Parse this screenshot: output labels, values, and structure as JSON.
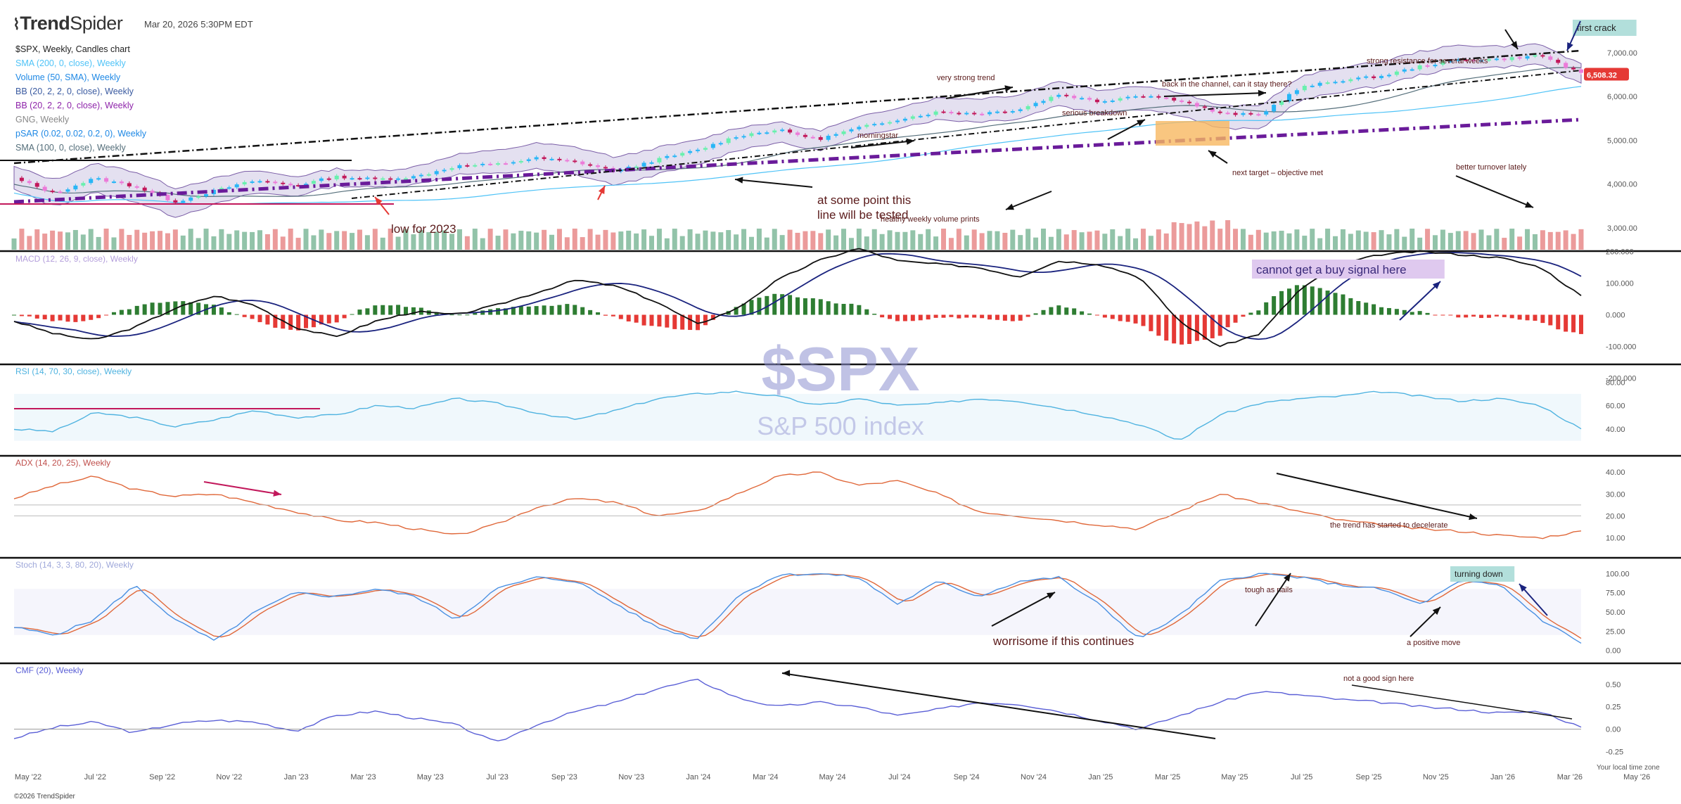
{
  "app": {
    "brand_bold": "Trend",
    "brand_light": "Spider",
    "timestamp": "Mar 20, 2026 5:30PM EDT",
    "footer": "©2026 TrendSpider",
    "timezone_note": "Your local time zone"
  },
  "header": {
    "symbol_line": "$SPX, Weekly, Candles chart",
    "indicators": [
      {
        "label": "SMA (200, 0, close), Weekly",
        "color": "#4fc3f7"
      },
      {
        "label": "Volume (50, SMA), Weekly",
        "color": "#1e88e5"
      },
      {
        "label": "BB (20, 2, 2, 0, close), Weekly",
        "color": "#3a5aa0"
      },
      {
        "label": "BB (20, 2, 2, 0, close), Weekly",
        "color": "#8e24aa"
      },
      {
        "label": "GNG, Weekly",
        "color": "#888888"
      },
      {
        "label": "pSAR (0.02, 0.02, 0.2, 0), Weekly",
        "color": "#1e88e5"
      },
      {
        "label": "SMA (100, 0, close), Weekly",
        "color": "#546e7a"
      }
    ]
  },
  "watermark": {
    "symbol": "$SPX",
    "name": "S&P 500 index"
  },
  "chart_data": {
    "type": "candlestick",
    "x_tick_labels": [
      "May '22",
      "Jul '22",
      "Sep '22",
      "Nov '22",
      "Jan '23",
      "Mar '23",
      "May '23",
      "Jul '23",
      "Sep '23",
      "Nov '23",
      "Jan '24",
      "Mar '24",
      "May '24",
      "Jul '24",
      "Sep '24",
      "Nov '24",
      "Jan '25",
      "Mar '25",
      "May '25",
      "Jul '25",
      "Sep '25",
      "Nov '25",
      "Jan '26",
      "Mar '26",
      "May '26"
    ],
    "price": {
      "y_ticks": [
        "7,000.00",
        "6,000.00",
        "5,000.00",
        "4,000.00",
        "3,000.00"
      ],
      "last_price_label": "6,508.32",
      "last_price": 6508.32,
      "closes_by_month": [
        4130,
        3790,
        4130,
        3950,
        3590,
        3850,
        4080,
        3970,
        4170,
        4110,
        4170,
        4410,
        4450,
        4590,
        4500,
        4290,
        4560,
        4770,
        5100,
        5240,
        5020,
        5280,
        5480,
        5650,
        5610,
        5700,
        6050,
        5880,
        6040,
        5920,
        5610,
        5580,
        6200,
        6370,
        6460,
        6690,
        6840,
        6850,
        6940,
        6510
      ]
    },
    "panels": [
      {
        "name": "MACD (12, 26, 9, close), Weekly",
        "y_ticks": [
          "200.000",
          "100.000",
          "0.000",
          "-100.000",
          "-200.000"
        ]
      },
      {
        "name": "RSI (14, 70, 30, close), Weekly",
        "y_ticks": [
          "80.00",
          "60.00",
          "40.00"
        ]
      },
      {
        "name": "ADX (14, 20, 25), Weekly",
        "y_ticks": [
          "40.00",
          "30.00",
          "20.00",
          "10.00"
        ]
      },
      {
        "name": "Stoch (14, 3, 3, 80, 20), Weekly",
        "y_ticks": [
          "100.00",
          "75.00",
          "50.00",
          "25.00",
          "0.00"
        ]
      },
      {
        "name": "CMF (20), Weekly",
        "y_ticks": [
          "0.50",
          "0.25",
          "0.00",
          "-0.25"
        ]
      }
    ],
    "macd_series": [
      -20,
      -60,
      -80,
      -40,
      20,
      60,
      30,
      -40,
      -70,
      -20,
      10,
      0,
      30,
      70,
      110,
      90,
      40,
      -30,
      20,
      110,
      170,
      210,
      170,
      160,
      150,
      120,
      170,
      160,
      120,
      -20,
      -100,
      -60,
      80,
      160,
      190,
      200,
      190,
      180,
      150,
      60
    ],
    "rsi_series": [
      40,
      38,
      54,
      50,
      42,
      48,
      56,
      50,
      52,
      60,
      58,
      66,
      62,
      54,
      48,
      56,
      66,
      70,
      72,
      68,
      60,
      66,
      60,
      62,
      66,
      64,
      58,
      52,
      44,
      30,
      52,
      62,
      66,
      68,
      72,
      68,
      64,
      66,
      60,
      40
    ],
    "adx_series": [
      28,
      34,
      38,
      32,
      29,
      30,
      26,
      22,
      18,
      17,
      14,
      11,
      16,
      24,
      28,
      26,
      20,
      22,
      30,
      38,
      40,
      34,
      36,
      30,
      22,
      20,
      18,
      16,
      14,
      22,
      30,
      26,
      22,
      18,
      16,
      14,
      13,
      11,
      10,
      13
    ],
    "stoch_series": [
      30,
      20,
      40,
      85,
      40,
      12,
      50,
      75,
      70,
      80,
      70,
      40,
      80,
      95,
      90,
      60,
      30,
      15,
      70,
      98,
      100,
      95,
      60,
      90,
      70,
      90,
      95,
      60,
      15,
      45,
      90,
      100,
      95,
      85,
      80,
      60,
      90,
      85,
      40,
      10
    ],
    "cmf_series": [
      -0.1,
      0.02,
      0.08,
      -0.04,
      0.06,
      0.1,
      0.08,
      -0.02,
      0.15,
      0.2,
      0.12,
      0.05,
      -0.15,
      0.05,
      0.2,
      0.3,
      0.45,
      0.55,
      0.35,
      0.25,
      0.3,
      0.25,
      0.15,
      0.22,
      0.3,
      0.28,
      0.2,
      0.1,
      0.0,
      0.15,
      0.3,
      0.42,
      0.38,
      0.33,
      0.3,
      0.25,
      0.22,
      0.18,
      0.2,
      0.02
    ]
  },
  "annotations": [
    {
      "text": "first crack"
    },
    {
      "text": "strong resistance for several weeks"
    },
    {
      "text": "very strong trend"
    },
    {
      "text": "back in the channel, can it stay there?"
    },
    {
      "text": "serious breakdown"
    },
    {
      "text": "morningstar"
    },
    {
      "text": "next target – objective met"
    },
    {
      "text": "better turnover lately"
    },
    {
      "text": "at some point this"
    },
    {
      "text": "line will be tested"
    },
    {
      "text": "healthy weekly volume prints"
    },
    {
      "text": "low for 2023"
    },
    {
      "text": "cannot get a buy signal here"
    },
    {
      "text": "the trend has started to decelerate"
    },
    {
      "text": "turning down"
    },
    {
      "text": "tough as nails"
    },
    {
      "text": "a positive move"
    },
    {
      "text": "worrisome if this continues"
    },
    {
      "text": "not a good sign here"
    }
  ],
  "colors": {
    "up": "#26a69a",
    "down": "#ef5350",
    "macd": "#111111",
    "signal": "#1a237e",
    "rsi": "#4fb3e0",
    "adx": "#e0683a",
    "stoch_k": "#4a90e2",
    "stoch_d": "#e0683a",
    "cmf": "#5a5fd6",
    "bb_fill": "#d9d3ea",
    "psar": "#6a3fb5"
  }
}
